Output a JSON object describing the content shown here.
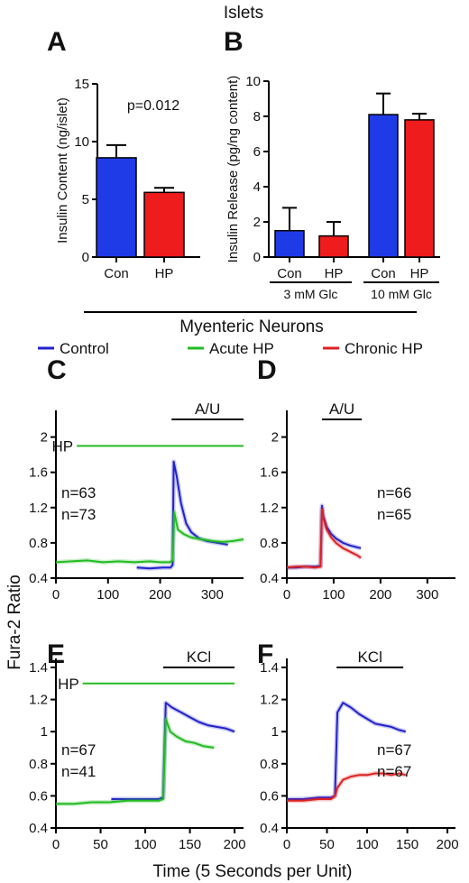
{
  "header": {
    "top_title": "Islets",
    "section_title": "Myenteric Neurons"
  },
  "legend": [
    {
      "label": "Control",
      "color": "#2222cc"
    },
    {
      "label": "Acute HP",
      "color": "#22bb22"
    },
    {
      "label": "Chronic HP",
      "color": "#dd2222"
    }
  ],
  "shared_labels": {
    "y_neurons": "Fura-2 Ratio",
    "x_neurons": "Time (5 Seconds per Unit)"
  },
  "chart_data": [
    {
      "panel": "A",
      "type": "bar",
      "ylabel": "Insulin Content (ng/islet)",
      "categories": [
        "Con",
        "HP"
      ],
      "values": [
        8.6,
        5.6
      ],
      "errors": [
        1.1,
        0.4
      ],
      "colors": [
        "#1f3be8",
        "#ee1c1c"
      ],
      "ylim": [
        0,
        15
      ],
      "yticks": [
        0,
        5,
        10,
        15
      ],
      "annotation": "p=0.012"
    },
    {
      "panel": "B",
      "type": "bar",
      "ylabel": "Insulin Release (pg/ng content)",
      "categories": [
        "Con",
        "HP",
        "Con",
        "HP"
      ],
      "values": [
        1.5,
        1.2,
        8.1,
        7.8
      ],
      "errors": [
        1.3,
        0.8,
        1.2,
        0.35
      ],
      "colors": [
        "#1f3be8",
        "#ee1c1c",
        "#1f3be8",
        "#ee1c1c"
      ],
      "groups": [
        "3 mM Glc",
        "10 mM Glc"
      ],
      "ylim": [
        0,
        10
      ],
      "yticks": [
        0,
        2,
        4,
        6,
        8,
        10
      ]
    },
    {
      "panel": "C",
      "type": "line",
      "xlim": [
        0,
        360
      ],
      "xticks": [
        0,
        100,
        200,
        300
      ],
      "ylim": [
        0.4,
        2.2
      ],
      "yticks": [
        0.4,
        0.8,
        1.2,
        1.6,
        2.0
      ],
      "bars": [
        {
          "label": "A/U",
          "from": 222,
          "to": 360,
          "color": "#000000",
          "y": 2.2
        },
        {
          "label": "HP",
          "from": 40,
          "to": 360,
          "color": "#22bb22",
          "y": 1.9
        }
      ],
      "n_labels": [
        {
          "text": "n=63",
          "color": "#2222cc"
        },
        {
          "text": "n=73",
          "color": "#22bb22"
        }
      ],
      "series": [
        {
          "name": "Control",
          "color": "#2222cc",
          "x": [
            155,
            180,
            205,
            220,
            224,
            226,
            232,
            240,
            250,
            260,
            275,
            290,
            310,
            330
          ],
          "y": [
            0.52,
            0.51,
            0.52,
            0.52,
            0.55,
            1.72,
            1.55,
            1.25,
            1.02,
            0.92,
            0.85,
            0.82,
            0.8,
            0.78
          ]
        },
        {
          "name": "Acute HP",
          "color": "#22bb22",
          "x": [
            0,
            30,
            60,
            90,
            120,
            150,
            180,
            200,
            218,
            224,
            227,
            234,
            245,
            260,
            280,
            300,
            320,
            340,
            360
          ],
          "y": [
            0.58,
            0.59,
            0.6,
            0.58,
            0.59,
            0.58,
            0.59,
            0.58,
            0.58,
            0.6,
            1.15,
            0.95,
            0.9,
            0.86,
            0.84,
            0.82,
            0.81,
            0.82,
            0.84
          ]
        }
      ]
    },
    {
      "panel": "D",
      "type": "line",
      "xlim": [
        0,
        360
      ],
      "xticks": [
        0,
        100,
        200,
        300
      ],
      "ylim": [
        0.4,
        2.2
      ],
      "yticks": [
        0.4,
        0.8,
        1.2,
        1.6,
        2.0
      ],
      "bars": [
        {
          "label": "A/U",
          "from": 75,
          "to": 160,
          "color": "#000000",
          "y": 2.2
        }
      ],
      "n_labels": [
        {
          "text": "n=66",
          "color": "#2222cc"
        },
        {
          "text": "n=65",
          "color": "#dd2222"
        }
      ],
      "series": [
        {
          "name": "Control",
          "color": "#2222cc",
          "x": [
            0,
            20,
            40,
            60,
            72,
            75,
            78,
            85,
            95,
            105,
            120,
            135,
            150,
            158
          ],
          "y": [
            0.52,
            0.52,
            0.53,
            0.53,
            0.54,
            1.22,
            1.1,
            0.98,
            0.9,
            0.85,
            0.8,
            0.77,
            0.75,
            0.74
          ]
        },
        {
          "name": "Chronic HP",
          "color": "#dd2222",
          "x": [
            0,
            20,
            40,
            60,
            72,
            75,
            78,
            85,
            95,
            105,
            120,
            135,
            150,
            158
          ],
          "y": [
            0.52,
            0.53,
            0.53,
            0.52,
            0.53,
            1.18,
            1.08,
            0.95,
            0.86,
            0.8,
            0.74,
            0.7,
            0.66,
            0.63
          ]
        }
      ]
    },
    {
      "panel": "E",
      "type": "line",
      "xlim": [
        0,
        210
      ],
      "xticks": [
        0,
        50,
        100,
        150,
        200
      ],
      "ylim": [
        0.4,
        1.4
      ],
      "yticks": [
        0.4,
        0.6,
        0.8,
        1.0,
        1.2,
        1.4
      ],
      "bars": [
        {
          "label": "KCl",
          "from": 120,
          "to": 200,
          "color": "#000000",
          "y": 1.4
        },
        {
          "label": "HP",
          "from": 30,
          "to": 200,
          "color": "#22bb22",
          "y": 1.3
        }
      ],
      "n_labels": [
        {
          "text": "n=67",
          "color": "#2222cc"
        },
        {
          "text": "n=41",
          "color": "#22bb22"
        }
      ],
      "series": [
        {
          "name": "Control",
          "color": "#2222cc",
          "x": [
            62,
            80,
            100,
            115,
            120,
            123,
            130,
            140,
            150,
            160,
            170,
            180,
            190,
            200
          ],
          "y": [
            0.58,
            0.58,
            0.58,
            0.58,
            0.59,
            1.18,
            1.15,
            1.12,
            1.09,
            1.06,
            1.04,
            1.03,
            1.02,
            1.0
          ]
        },
        {
          "name": "Acute HP",
          "color": "#22bb22",
          "x": [
            0,
            20,
            40,
            60,
            80,
            100,
            115,
            120,
            123,
            128,
            135,
            145,
            155,
            165,
            177
          ],
          "y": [
            0.55,
            0.55,
            0.56,
            0.56,
            0.57,
            0.57,
            0.57,
            0.58,
            1.08,
            1.0,
            0.97,
            0.94,
            0.93,
            0.91,
            0.9
          ]
        }
      ]
    },
    {
      "panel": "F",
      "type": "line",
      "xlim": [
        0,
        210
      ],
      "xticks": [
        0,
        50,
        100,
        150,
        200
      ],
      "ylim": [
        0.4,
        1.4
      ],
      "yticks": [
        0.4,
        0.6,
        0.8,
        1.0,
        1.2,
        1.4
      ],
      "bars": [
        {
          "label": "KCl",
          "from": 62,
          "to": 145,
          "color": "#000000",
          "y": 1.4
        }
      ],
      "n_labels": [
        {
          "text": "n=67",
          "color": "#2222cc"
        },
        {
          "text": "n=67",
          "color": "#dd2222"
        }
      ],
      "series": [
        {
          "name": "Control",
          "color": "#2222cc",
          "x": [
            0,
            20,
            40,
            55,
            60,
            63,
            70,
            80,
            90,
            100,
            110,
            120,
            130,
            140,
            148
          ],
          "y": [
            0.58,
            0.58,
            0.59,
            0.59,
            0.6,
            1.12,
            1.18,
            1.15,
            1.11,
            1.08,
            1.05,
            1.04,
            1.03,
            1.01,
            1.0
          ]
        },
        {
          "name": "Chronic HP",
          "color": "#dd2222",
          "x": [
            0,
            20,
            40,
            55,
            60,
            63,
            70,
            80,
            90,
            100,
            110,
            120,
            130,
            140,
            148
          ],
          "y": [
            0.57,
            0.57,
            0.58,
            0.58,
            0.6,
            0.65,
            0.7,
            0.72,
            0.73,
            0.73,
            0.74,
            0.74,
            0.73,
            0.74,
            0.73
          ]
        }
      ]
    }
  ]
}
